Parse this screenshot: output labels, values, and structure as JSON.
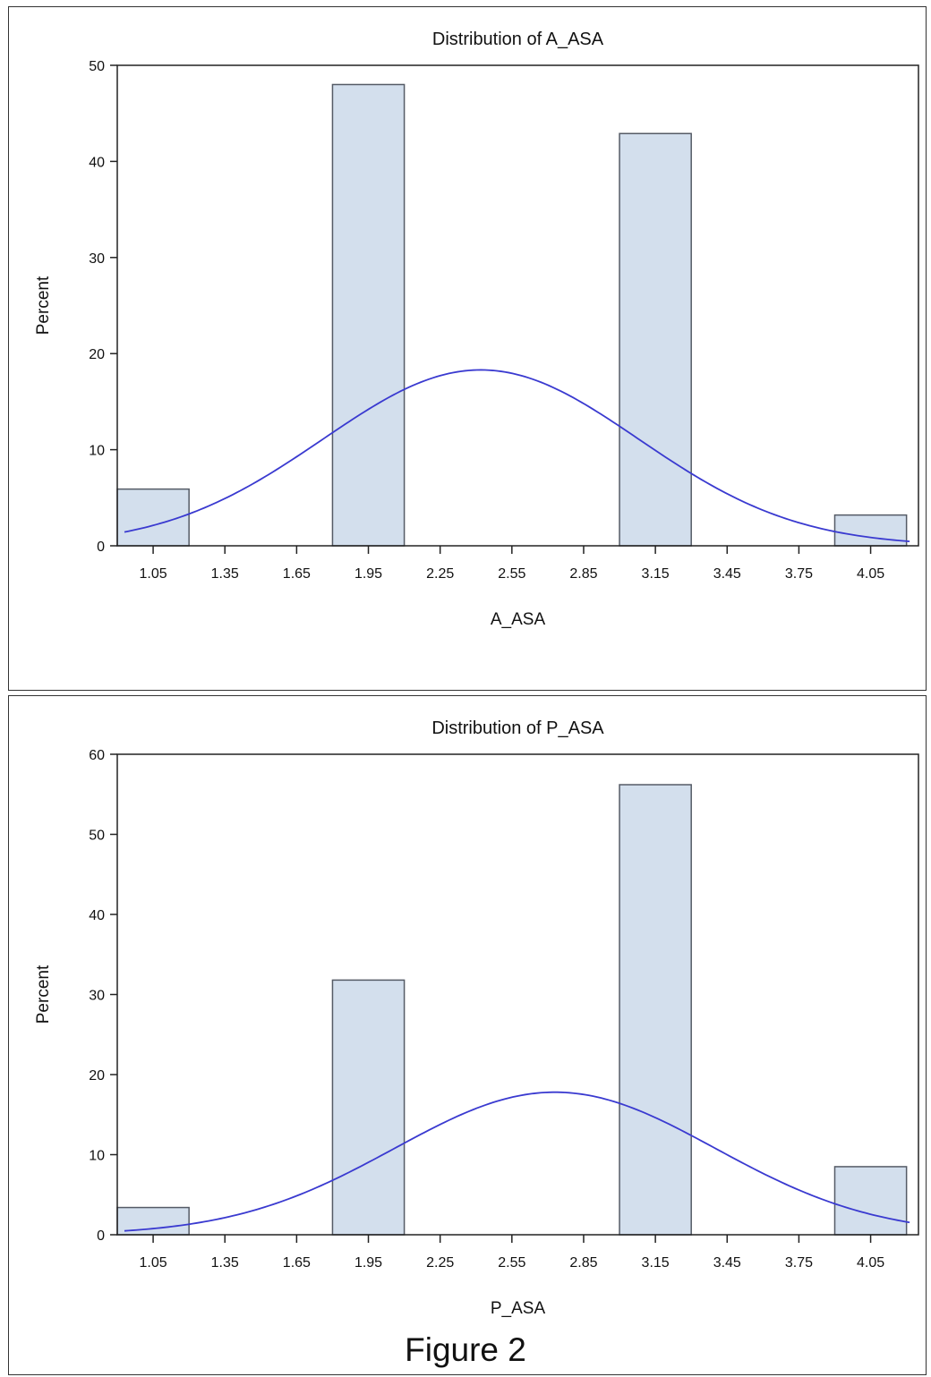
{
  "figure_caption": "Figure 2",
  "colors": {
    "bar_fill": "#d3dfed",
    "bar_stroke": "#555b66",
    "curve": "#3a3ad0",
    "axis": "#222222",
    "text": "#111111"
  },
  "chart_data": [
    {
      "type": "bar",
      "subtype": "histogram with normal density curve",
      "title": "Distribution of A_ASA",
      "xlabel": "A_ASA",
      "ylabel": "Percent",
      "xlim": [
        0.9,
        4.25
      ],
      "ylim": [
        0,
        50
      ],
      "x_ticks": [
        "1.05",
        "1.35",
        "1.65",
        "1.95",
        "2.25",
        "2.55",
        "2.85",
        "3.15",
        "3.45",
        "3.75",
        "4.05"
      ],
      "y_ticks": [
        "0",
        "10",
        "20",
        "30",
        "40",
        "50"
      ],
      "bin_width": 0.3,
      "bars": [
        {
          "center": 1.05,
          "value": 5.9
        },
        {
          "center": 1.95,
          "value": 48.0
        },
        {
          "center": 3.15,
          "value": 42.9
        },
        {
          "center": 4.05,
          "value": 3.2
        }
      ],
      "normal_curve": {
        "mean": 2.42,
        "std": 0.66,
        "peak": 18.3
      },
      "grid": false,
      "legend": "none"
    },
    {
      "type": "bar",
      "subtype": "histogram with normal density curve",
      "title": "Distribution of P_ASA",
      "xlabel": "P_ASA",
      "ylabel": "Percent",
      "xlim": [
        0.9,
        4.25
      ],
      "ylim": [
        0,
        60
      ],
      "x_ticks": [
        "1.05",
        "1.35",
        "1.65",
        "1.95",
        "2.25",
        "2.55",
        "2.85",
        "3.15",
        "3.45",
        "3.75",
        "4.05"
      ],
      "y_ticks": [
        "0",
        "10",
        "20",
        "30",
        "40",
        "50",
        "60"
      ],
      "bin_width": 0.3,
      "bars": [
        {
          "center": 1.05,
          "value": 3.4
        },
        {
          "center": 1.95,
          "value": 31.8
        },
        {
          "center": 3.15,
          "value": 56.2
        },
        {
          "center": 4.05,
          "value": 8.5
        }
      ],
      "normal_curve": {
        "mean": 2.73,
        "std": 0.67,
        "peak": 17.8
      },
      "grid": false,
      "legend": "none"
    }
  ]
}
